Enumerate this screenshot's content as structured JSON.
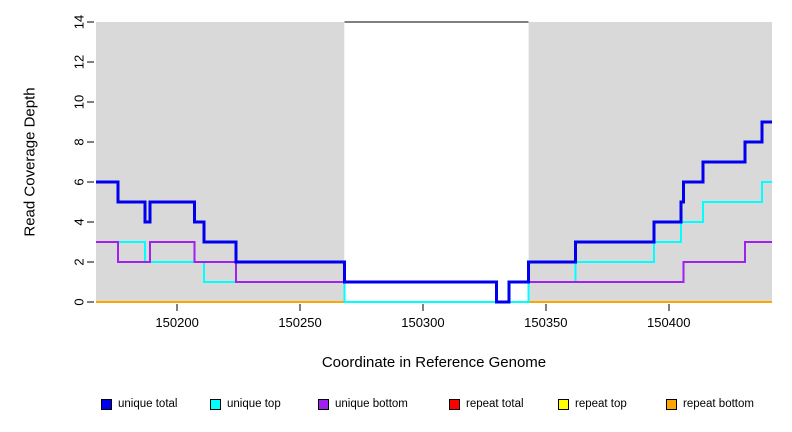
{
  "figure": {
    "xlabel": "Coordinate in Reference Genome",
    "ylabel": "Read Coverage Depth"
  },
  "chart_data": {
    "type": "line",
    "subtype": "step",
    "title": "",
    "xlabel": "Coordinate in Reference Genome",
    "ylabel": "Read Coverage Depth",
    "xlim": [
      150167,
      150442
    ],
    "ylim": [
      0,
      14
    ],
    "x_ticks": [
      150200,
      150250,
      150300,
      150350,
      150400
    ],
    "y_ticks": [
      0,
      2,
      4,
      6,
      8,
      10,
      12,
      14
    ],
    "grid": "off",
    "panel_color": "#D9D9D9",
    "background_panels": [
      {
        "x0": 150167,
        "x1": 150268,
        "color": "#D9D9D9"
      },
      {
        "x0": 150343,
        "x1": 150442,
        "color": "#D9D9D9"
      }
    ],
    "masked_region": {
      "x0": 150268,
      "x1": 150343,
      "top_line_y": 14,
      "line_color": "#000000"
    },
    "series": [
      {
        "name": "unique total",
        "color": "#0000EE",
        "line_width": 3,
        "steps": [
          [
            150167,
            6
          ],
          [
            150176,
            5
          ],
          [
            150187,
            4
          ],
          [
            150189,
            5
          ],
          [
            150207,
            4
          ],
          [
            150211,
            3
          ],
          [
            150224,
            2
          ],
          [
            150268,
            1
          ],
          [
            150330,
            0
          ],
          [
            150335,
            1
          ],
          [
            150343,
            2
          ],
          [
            150362,
            3
          ],
          [
            150394,
            4
          ],
          [
            150405,
            5
          ],
          [
            150406,
            6
          ],
          [
            150414,
            7
          ],
          [
            150431,
            8
          ],
          [
            150438,
            9
          ],
          [
            150442,
            9
          ]
        ]
      },
      {
        "name": "unique top",
        "color": "#00FFFF",
        "line_width": 2,
        "steps": [
          [
            150167,
            3
          ],
          [
            150187,
            2
          ],
          [
            150211,
            1
          ],
          [
            150268,
            0
          ],
          [
            150343,
            1
          ],
          [
            150362,
            2
          ],
          [
            150394,
            3
          ],
          [
            150405,
            4
          ],
          [
            150414,
            5
          ],
          [
            150438,
            6
          ],
          [
            150442,
            6
          ]
        ]
      },
      {
        "name": "unique bottom",
        "color": "#A020F0",
        "line_width": 2,
        "steps": [
          [
            150167,
            3
          ],
          [
            150176,
            2
          ],
          [
            150189,
            3
          ],
          [
            150207,
            2
          ],
          [
            150224,
            1
          ],
          [
            150330,
            0
          ],
          [
            150335,
            1
          ],
          [
            150406,
            2
          ],
          [
            150431,
            3
          ],
          [
            150442,
            3
          ]
        ]
      },
      {
        "name": "repeat total",
        "color": "#FF0000",
        "line_width": 2,
        "steps": [
          [
            150167,
            0
          ],
          [
            150442,
            0
          ]
        ]
      },
      {
        "name": "repeat top",
        "color": "#FFFF00",
        "line_width": 2,
        "steps": [
          [
            150167,
            0
          ],
          [
            150442,
            0
          ]
        ]
      },
      {
        "name": "repeat bottom",
        "color": "#FFA500",
        "line_width": 2,
        "steps": [
          [
            150167,
            0
          ],
          [
            150442,
            0
          ]
        ]
      }
    ],
    "draw_order": [
      "repeat total",
      "repeat top",
      "repeat bottom",
      "unique top",
      "unique bottom",
      "unique total"
    ],
    "legend": {
      "position": "bottom",
      "items": [
        {
          "name": "unique total",
          "color": "#0000EE"
        },
        {
          "name": "unique top",
          "color": "#00FFFF"
        },
        {
          "name": "unique bottom",
          "color": "#A020F0"
        },
        {
          "name": "repeat total",
          "color": "#FF0000"
        },
        {
          "name": "repeat top",
          "color": "#FFFF00"
        },
        {
          "name": "repeat bottom",
          "color": "#FFA500"
        }
      ]
    }
  }
}
